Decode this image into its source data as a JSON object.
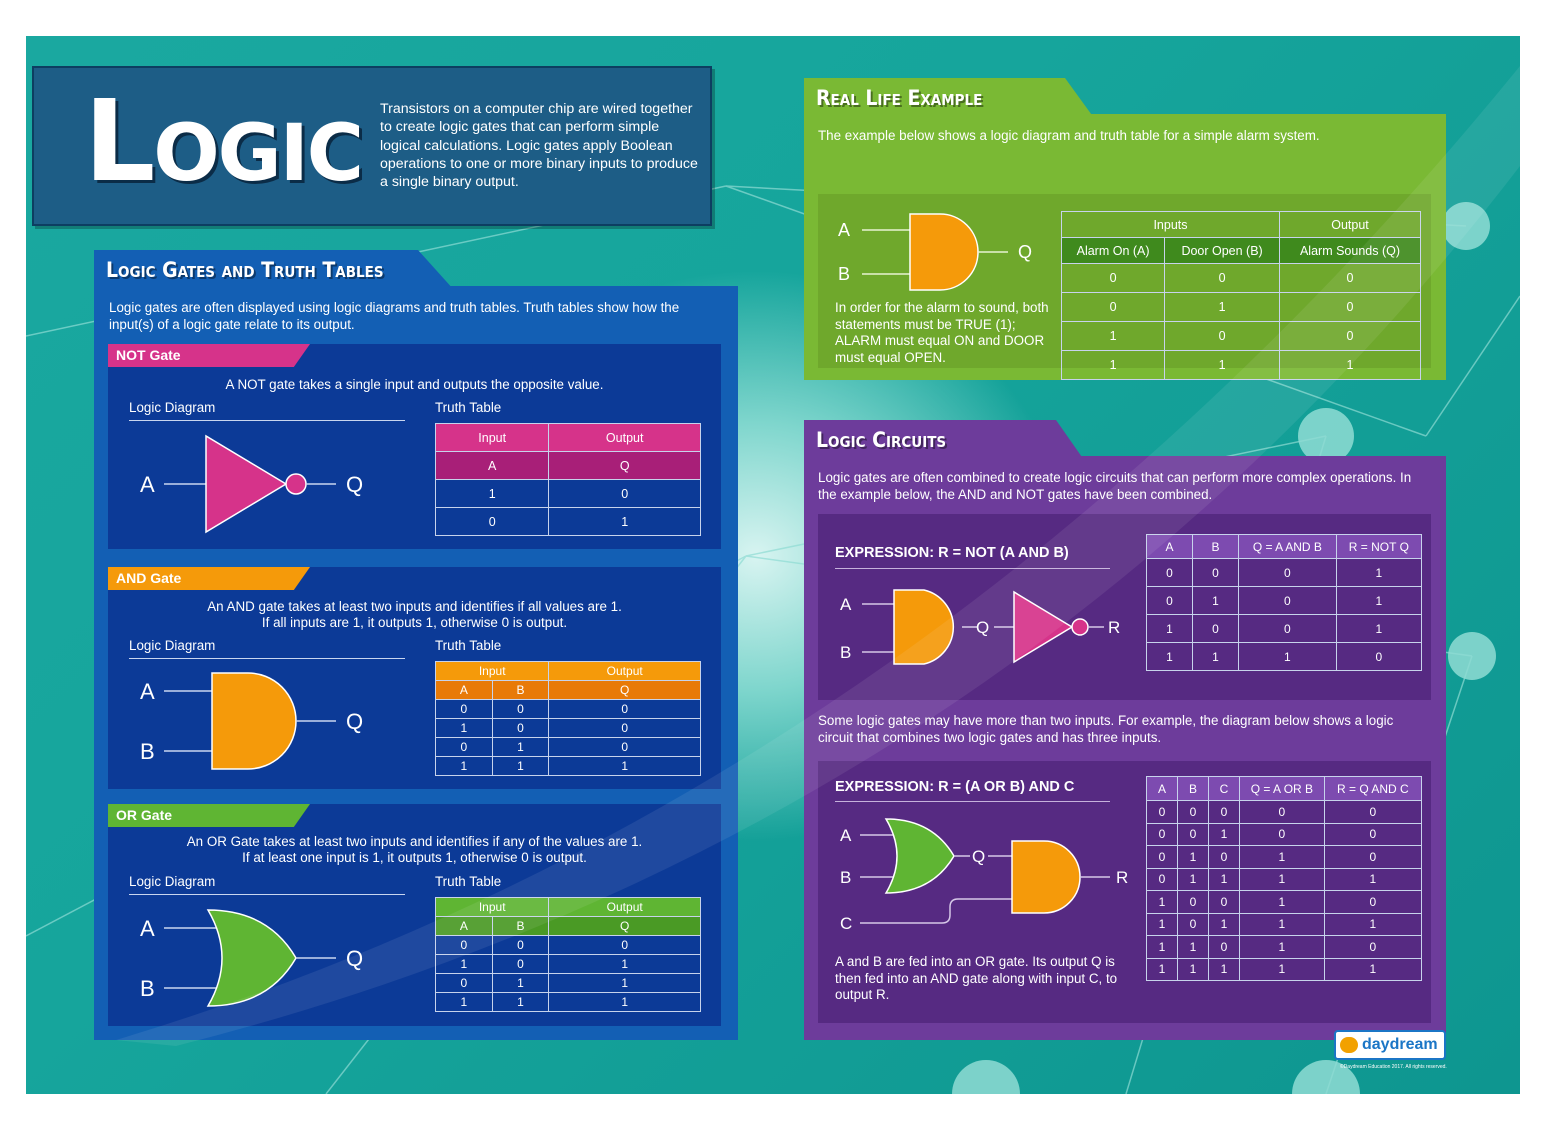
{
  "header": {
    "title": "Logic",
    "description": "Transistors on a computer chip are wired together to create logic gates that can perform simple logical calculations. Logic gates apply Boolean operations to one or more binary inputs to produce a single binary output."
  },
  "gates_section": {
    "title": "Logic Gates and Truth Tables",
    "intro": "Logic gates are often displayed using logic diagrams and truth tables. Truth tables show how the input(s) of a logic gate relate to its output.",
    "diagram_label": "Logic Diagram",
    "table_label": "Truth Table",
    "not_gate": {
      "name": "NOT Gate",
      "color": "#d6338a",
      "desc": "A NOT gate takes a single input and outputs the opposite value.",
      "in_a": "A",
      "out_q": "Q",
      "head_input": "Input",
      "head_output": "Output",
      "cols": [
        "A",
        "Q"
      ],
      "rows": [
        [
          "1",
          "0"
        ],
        [
          "0",
          "1"
        ]
      ]
    },
    "and_gate": {
      "name": "AND Gate",
      "color": "#f59a0a",
      "desc1": "An AND gate takes at least two inputs and identifies if all values are 1.",
      "desc2": "If all inputs are 1, it outputs 1, otherwise 0 is output.",
      "in_a": "A",
      "in_b": "B",
      "out_q": "Q",
      "head_input": "Input",
      "head_output": "Output",
      "cols": [
        "A",
        "B",
        "Q"
      ],
      "rows": [
        [
          "0",
          "0",
          "0"
        ],
        [
          "1",
          "0",
          "0"
        ],
        [
          "0",
          "1",
          "0"
        ],
        [
          "1",
          "1",
          "1"
        ]
      ]
    },
    "or_gate": {
      "name": "OR Gate",
      "color": "#5fb533",
      "desc1": "An OR Gate takes at least two inputs and identifies if any of the values are 1.",
      "desc2": "If at least one input is 1, it outputs 1, otherwise 0 is output.",
      "in_a": "A",
      "in_b": "B",
      "out_q": "Q",
      "head_input": "Input",
      "head_output": "Output",
      "cols": [
        "A",
        "B",
        "Q"
      ],
      "rows": [
        [
          "0",
          "0",
          "0"
        ],
        [
          "1",
          "0",
          "1"
        ],
        [
          "0",
          "1",
          "1"
        ],
        [
          "1",
          "1",
          "1"
        ]
      ]
    }
  },
  "real_life": {
    "title": "Real Life Example",
    "intro": "The example below shows a logic diagram and truth table for a simple alarm system.",
    "in_a": "A",
    "in_b": "B",
    "out_q": "Q",
    "note": "In order for the alarm to sound, both statements must be TRUE (1); ALARM must equal ON and DOOR must equal OPEN.",
    "head_inputs": "Inputs",
    "head_output": "Output",
    "cols": [
      "Alarm On (A)",
      "Door Open (B)",
      "Alarm Sounds (Q)"
    ],
    "rows": [
      [
        "0",
        "0",
        "0"
      ],
      [
        "0",
        "1",
        "0"
      ],
      [
        "1",
        "0",
        "0"
      ],
      [
        "1",
        "1",
        "1"
      ]
    ]
  },
  "circuits": {
    "title": "Logic Circuits",
    "intro": "Logic gates are often combined to create logic circuits that can perform more complex operations. In the example below, the AND and NOT gates have been combined.",
    "ex1": {
      "expression": "EXPRESSION: R = NOT (A AND B)",
      "in_a": "A",
      "in_b": "B",
      "mid_q": "Q",
      "out_r": "R",
      "cols": [
        "A",
        "B",
        "Q = A AND B",
        "R = NOT Q"
      ],
      "rows": [
        [
          "0",
          "0",
          "0",
          "1"
        ],
        [
          "0",
          "1",
          "0",
          "1"
        ],
        [
          "1",
          "0",
          "0",
          "1"
        ],
        [
          "1",
          "1",
          "1",
          "0"
        ]
      ]
    },
    "middle_text": "Some logic gates may have more than two inputs. For example, the diagram below shows a logic circuit that combines two logic gates and has three inputs.",
    "ex2": {
      "expression": "EXPRESSION: R = (A OR B) AND C",
      "in_a": "A",
      "in_b": "B",
      "in_c": "C",
      "mid_q": "Q",
      "out_r": "R",
      "note": "A and B are fed into an OR gate. Its output Q is then fed into an AND gate along with input C, to output R.",
      "cols": [
        "A",
        "B",
        "C",
        "Q = A OR B",
        "R = Q AND C"
      ],
      "rows": [
        [
          "0",
          "0",
          "0",
          "0",
          "0"
        ],
        [
          "0",
          "0",
          "1",
          "0",
          "0"
        ],
        [
          "0",
          "1",
          "0",
          "1",
          "0"
        ],
        [
          "0",
          "1",
          "1",
          "1",
          "1"
        ],
        [
          "1",
          "0",
          "0",
          "1",
          "0"
        ],
        [
          "1",
          "0",
          "1",
          "1",
          "1"
        ],
        [
          "1",
          "1",
          "0",
          "1",
          "0"
        ],
        [
          "1",
          "1",
          "1",
          "1",
          "1"
        ]
      ]
    }
  },
  "footer": {
    "brand": "daydream",
    "copyright": "©Daydream Education 2017. All rights reserved."
  }
}
